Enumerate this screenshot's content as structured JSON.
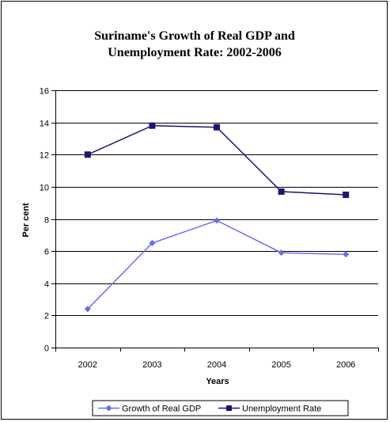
{
  "chart_data": {
    "type": "line",
    "title_lines": [
      "Suriname's Growth of Real GDP and",
      "Unemployment Rate: 2002-2006"
    ],
    "xlabel": "Years",
    "ylabel": "Per cent",
    "ylim": [
      0,
      16
    ],
    "yticks": [
      "0",
      "2",
      "4",
      "6",
      "8",
      "10",
      "12",
      "14",
      "16"
    ],
    "categories": [
      "2002",
      "2003",
      "2004",
      "2005",
      "2006"
    ],
    "grid": true,
    "legend_position": "bottom",
    "series": [
      {
        "name": "Growth of Real GDP",
        "values": [
          2.4,
          6.5,
          7.9,
          5.9,
          5.8
        ],
        "color": "#6b6bf0",
        "marker": "diamond"
      },
      {
        "name": "Unemployment Rate",
        "values": [
          12.0,
          13.8,
          13.7,
          9.7,
          9.5
        ],
        "color": "#1a1570",
        "marker": "square"
      }
    ]
  }
}
